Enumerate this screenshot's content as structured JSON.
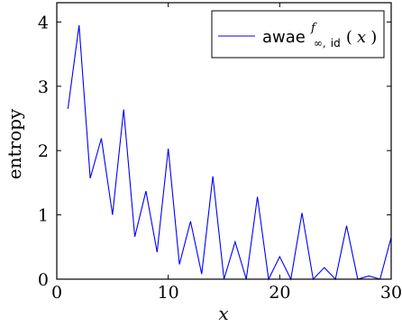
{
  "chart_data": {
    "type": "line",
    "xlabel": "x",
    "ylabel": "entropy",
    "xlim": [
      0,
      30
    ],
    "ylim": [
      0,
      4.3
    ],
    "x_ticks": [
      0,
      10,
      20,
      30
    ],
    "y_ticks": [
      0,
      1,
      2,
      3,
      4
    ],
    "x_tick_labels": [
      "0",
      "10",
      "20",
      "30"
    ],
    "y_tick_labels": [
      "0",
      "1",
      "2",
      "3",
      "4"
    ],
    "grid": false,
    "legend_position": "top-right",
    "series": [
      {
        "name": "awae^f_{∞,id}(x)",
        "color": "#0000ff",
        "x": [
          1,
          2,
          3,
          4,
          5,
          6,
          7,
          8,
          9,
          10,
          11,
          12,
          13,
          14,
          15,
          16,
          17,
          18,
          19,
          20,
          21,
          22,
          23,
          24,
          25,
          26,
          27,
          28,
          29,
          30
        ],
        "y": [
          2.65,
          3.95,
          1.57,
          2.19,
          1.0,
          2.64,
          0.66,
          1.37,
          0.42,
          2.03,
          0.23,
          0.9,
          0.08,
          1.6,
          0.0,
          0.58,
          0.0,
          1.28,
          0.0,
          0.35,
          0.0,
          1.03,
          0.0,
          0.18,
          0.0,
          0.83,
          0.0,
          0.05,
          0.0,
          0.65
        ]
      }
    ],
    "legend": {
      "base": "awae",
      "sup": "f",
      "sub_infty": "∞,",
      "sub_id": "id",
      "arg_open": "(",
      "arg_var": "x",
      "arg_close": ")"
    }
  }
}
